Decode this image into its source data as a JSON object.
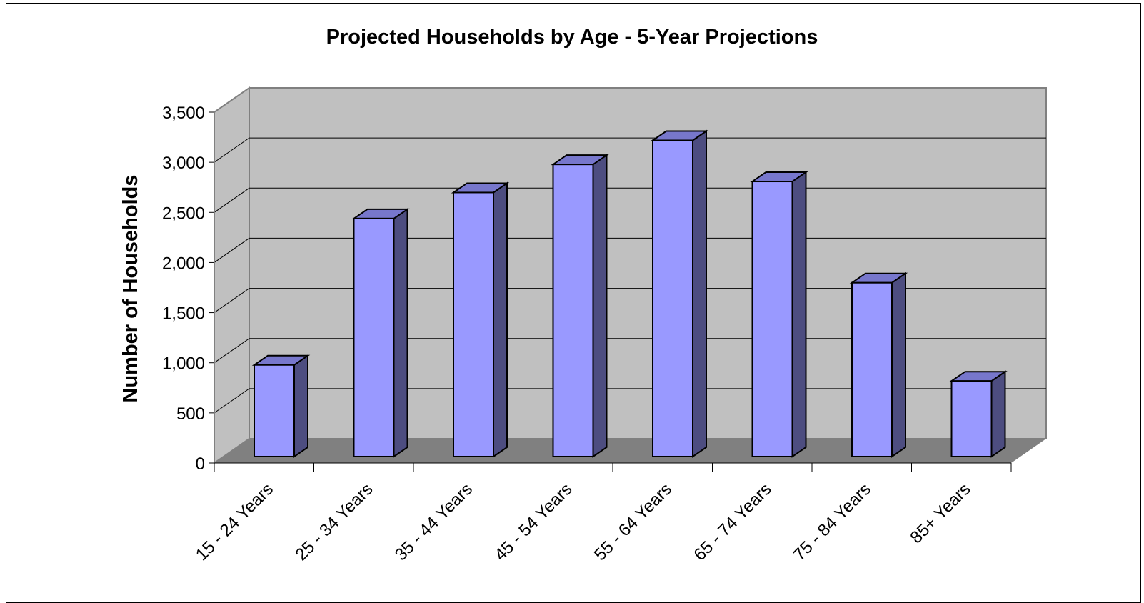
{
  "chart_data": {
    "type": "bar",
    "title": "Projected Households by Age - 5-Year Projections",
    "xlabel": "",
    "ylabel": "Number of Households",
    "categories": [
      "15 - 24 Years",
      "25 - 34 Years",
      "35 - 44 Years",
      "45 - 54 Years",
      "55 - 64 Years",
      "65 - 74 Years",
      "75 - 84 Years",
      "85+ Years"
    ],
    "series": [
      {
        "values": [
          900,
          2360,
          2620,
          2900,
          3140,
          2730,
          1720,
          740
        ]
      }
    ],
    "ylim": [
      0,
      3500
    ],
    "yticks": [
      0,
      500,
      1000,
      1500,
      2000,
      2500,
      3000,
      3500
    ],
    "ytick_labels": [
      "0",
      "500",
      "1,000",
      "1,500",
      "2,000",
      "2,500",
      "3,000",
      "3,500"
    ],
    "grid": true,
    "legend": "none",
    "style": "3d",
    "colors": {
      "bar_front": "#9999ff",
      "bar_side": "#4d4d80",
      "bar_top": "#7777cc",
      "wall": "#c0c0c0",
      "floor": "#808080",
      "gridline": "#000000"
    }
  }
}
